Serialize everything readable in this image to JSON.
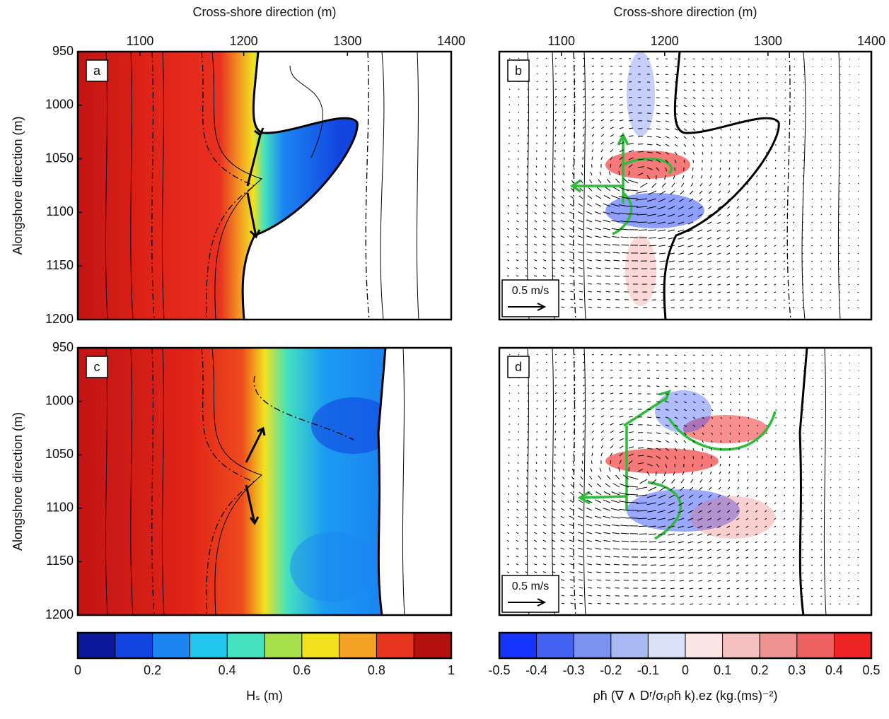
{
  "chart_data": [
    {
      "type": "heatmap",
      "panel_label": "a",
      "x_label": "Cross-shore direction (m)",
      "y_label": "Alongshore direction (m)",
      "xlim": [
        1040,
        1400
      ],
      "ylim": [
        950,
        1200
      ],
      "xticks": [
        1100,
        1200,
        1300,
        1400
      ],
      "yticks": [
        950,
        1000,
        1050,
        1100,
        1150,
        1200
      ]
    },
    {
      "type": "heatmap",
      "panel_label": "b",
      "x_label": "Cross-shore direction (m)",
      "scale_label": "0.5 m/s",
      "xlim": [
        1040,
        1400
      ],
      "ylim": [
        950,
        1200
      ],
      "xticks": [
        1100,
        1200,
        1300,
        1400
      ]
    },
    {
      "type": "heatmap",
      "panel_label": "c",
      "y_label": "Alongshore direction (m)",
      "xlim": [
        1040,
        1400
      ],
      "ylim": [
        950,
        1200
      ],
      "yticks": [
        950,
        1000,
        1050,
        1100,
        1150,
        1200
      ]
    },
    {
      "type": "heatmap",
      "panel_label": "d",
      "scale_label": "0.5 m/s",
      "xlim": [
        1040,
        1400
      ],
      "ylim": [
        950,
        1200
      ]
    },
    {
      "type": "colorbar",
      "label": "Hₛ (m)",
      "xlim": [
        0,
        1
      ],
      "xticks": [
        0,
        0.2,
        0.4,
        0.6,
        0.8,
        1
      ],
      "colors": [
        "#0b1a98",
        "#1245e0",
        "#1b86f2",
        "#22c6ee",
        "#45e2bf",
        "#a6e14c",
        "#f2e21e",
        "#f3a223",
        "#e6341e",
        "#b41010"
      ]
    },
    {
      "type": "colorbar",
      "label": "ρh̄ (∇ ∧ Dʳ/σᵣρh̄ k).eᴢ  (kg.(ms)⁻²)",
      "xlim": [
        -0.5,
        0.5
      ],
      "xticks": [
        -0.5,
        -0.4,
        -0.3,
        -0.2,
        -0.1,
        0,
        0.1,
        0.2,
        0.3,
        0.4,
        0.5
      ],
      "colors": [
        "#1535ff",
        "#4463f2",
        "#7a92f0",
        "#a9b8f2",
        "#d9e1f8",
        "#fbe6e6",
        "#f7c0c0",
        "#f19292",
        "#ee6262",
        "#ee2323"
      ]
    }
  ]
}
